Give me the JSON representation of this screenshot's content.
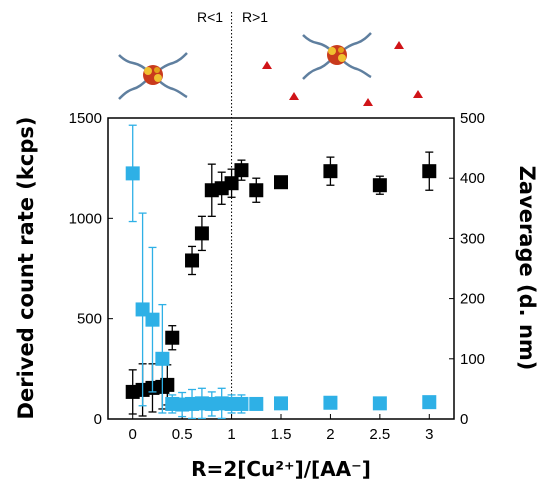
{
  "chart_data": {
    "type": "scatter",
    "xlabel": "R=2[Cu²⁺]/[AA⁻]",
    "ylabel_left": "Derived count rate (kcps)",
    "ylabel_right": "Zaverage (d. nm)",
    "xlim": [
      -0.25,
      3.25
    ],
    "ylim_left": [
      0,
      1500
    ],
    "ylim_right": [
      0,
      500
    ],
    "x_ticks": [
      "0",
      "0.5",
      "1",
      "1.5",
      "2",
      "2.5",
      "3"
    ],
    "y_left_ticks": [
      "0",
      "500",
      "1000",
      "1500"
    ],
    "y_right_ticks": [
      "0",
      "100",
      "200",
      "300",
      "400",
      "500"
    ],
    "grid": false,
    "vline_x": 1,
    "region_labels": [
      "R<1",
      "R>1"
    ],
    "colors": {
      "black_series": "#000000",
      "blue_series": "#2eb0e6",
      "triangles": "#d01418"
    },
    "series": [
      {
        "axis": "left",
        "color": "#000000",
        "marker": "square",
        "points": [
          {
            "x": 0,
            "y": 135,
            "err": 110
          },
          {
            "x": 0.1,
            "y": 145,
            "err": 130
          },
          {
            "x": 0.2,
            "y": 155,
            "err": 120
          },
          {
            "x": 0.3,
            "y": 160,
            "err": 110
          },
          {
            "x": 0.35,
            "y": 170,
            "err": 100
          },
          {
            "x": 0.4,
            "y": 405,
            "err": 60
          },
          {
            "x": 0.6,
            "y": 790,
            "err": 70
          },
          {
            "x": 0.7,
            "y": 925,
            "err": 85
          },
          {
            "x": 0.8,
            "y": 1140,
            "err": 130
          },
          {
            "x": 0.9,
            "y": 1150,
            "err": 80
          },
          {
            "x": 1.0,
            "y": 1175,
            "err": 70
          },
          {
            "x": 1.1,
            "y": 1240,
            "err": 50
          },
          {
            "x": 1.25,
            "y": 1140,
            "err": 60
          },
          {
            "x": 1.5,
            "y": 1180,
            "err": 25
          },
          {
            "x": 2.0,
            "y": 1235,
            "err": 70
          },
          {
            "x": 2.5,
            "y": 1165,
            "err": 45
          },
          {
            "x": 3.0,
            "y": 1235,
            "err": 95
          }
        ]
      },
      {
        "axis": "right",
        "color": "#2eb0e6",
        "marker": "square",
        "points": [
          {
            "x": 0,
            "y": 408,
            "err": 80
          },
          {
            "x": 0.1,
            "y": 182,
            "err": 160
          },
          {
            "x": 0.2,
            "y": 165,
            "err": 120
          },
          {
            "x": 0.3,
            "y": 100,
            "err": 90
          },
          {
            "x": 0.4,
            "y": 25,
            "err": 15
          },
          {
            "x": 0.5,
            "y": 24,
            "err": 20
          },
          {
            "x": 0.6,
            "y": 25,
            "err": 24
          },
          {
            "x": 0.7,
            "y": 26,
            "err": 25
          },
          {
            "x": 0.8,
            "y": 25,
            "err": 20
          },
          {
            "x": 0.9,
            "y": 26,
            "err": 25
          },
          {
            "x": 1.0,
            "y": 25,
            "err": 15
          },
          {
            "x": 1.1,
            "y": 25,
            "err": 15
          },
          {
            "x": 1.25,
            "y": 25,
            "err": 8
          },
          {
            "x": 1.5,
            "y": 26,
            "err": 0
          },
          {
            "x": 2.0,
            "y": 27,
            "err": 0
          },
          {
            "x": 2.5,
            "y": 26,
            "err": 0
          },
          {
            "x": 3.0,
            "y": 28,
            "err": 0
          }
        ]
      }
    ]
  }
}
